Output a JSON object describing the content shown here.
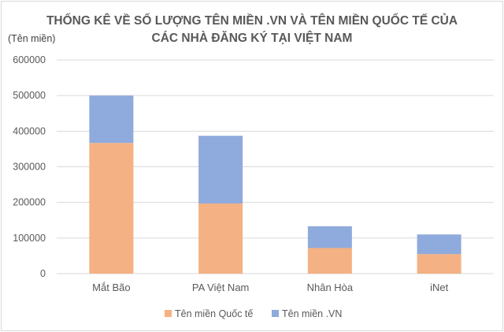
{
  "chart_data": {
    "type": "bar",
    "stacked": true,
    "title_line1": "THỐNG KÊ VỀ SỐ LƯỢNG TÊN MIỀN .VN VÀ TÊN MIỀN QUỐC TẾ CỦA",
    "title_line2": "CÁC NHÀ ĐĂNG KÝ TẠI VIỆT NAM",
    "ylabel": "(Tên miền)",
    "xlabel": "",
    "ylim": [
      0,
      600000
    ],
    "yticks": [
      "0",
      "100000",
      "200000",
      "300000",
      "400000",
      "500000",
      "600000"
    ],
    "grid": true,
    "legend_position": "bottom",
    "categories": [
      "Mắt Bão",
      "PA Việt Nam",
      "Nhân Hòa",
      "iNet"
    ],
    "series": [
      {
        "name": "Tên miền Quốc tế",
        "color": "#f4b183",
        "values": [
          367000,
          197000,
          72000,
          55000
        ]
      },
      {
        "name": "Tên miền .VN",
        "color": "#8faadc",
        "values": [
          133000,
          190000,
          61000,
          55000
        ]
      }
    ]
  }
}
